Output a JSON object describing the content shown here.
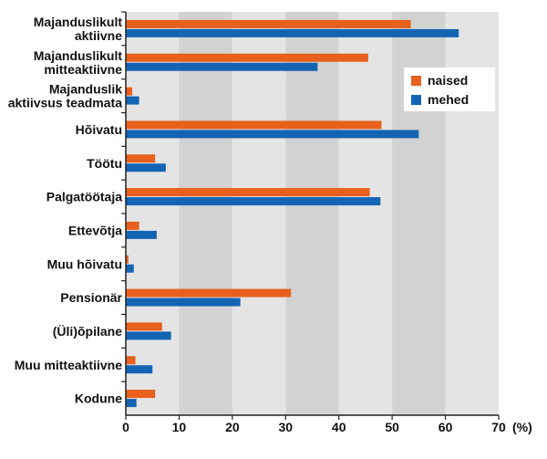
{
  "chart_data": {
    "type": "bar",
    "orientation": "horizontal",
    "categories": [
      [
        "Majanduslikult",
        "aktiivne"
      ],
      [
        "Majanduslikult",
        "mitteaktiivne"
      ],
      [
        "Majanduslik",
        "aktiivsus teadmata"
      ],
      [
        "Hõivatu"
      ],
      [
        "Töötu"
      ],
      [
        "Palgatöötaja"
      ],
      [
        "Ettevõtja"
      ],
      [
        "Muu hõivatu"
      ],
      [
        "Pensionär"
      ],
      [
        "(Üli)õpilane"
      ],
      [
        "Muu mitteaktiivne"
      ],
      [
        "Kodune"
      ]
    ],
    "series": [
      {
        "name": "naised",
        "color": "#e8601c",
        "values": [
          53.5,
          45.5,
          1.2,
          48.0,
          5.5,
          45.8,
          2.5,
          0.5,
          31.0,
          6.8,
          1.8,
          5.5
        ]
      },
      {
        "name": "mehed",
        "color": "#1464b4",
        "values": [
          62.5,
          36.0,
          2.5,
          55.0,
          7.5,
          47.8,
          5.8,
          1.5,
          21.5,
          8.5,
          5.0,
          2.0
        ]
      }
    ],
    "xlim": [
      0,
      70
    ],
    "xticks": [
      0,
      10,
      20,
      30,
      40,
      50,
      60,
      70
    ],
    "xunit": "(%)",
    "legend_position": "top-right",
    "band_colors": [
      "#e4e4e4",
      "#d2d2d2"
    ]
  }
}
